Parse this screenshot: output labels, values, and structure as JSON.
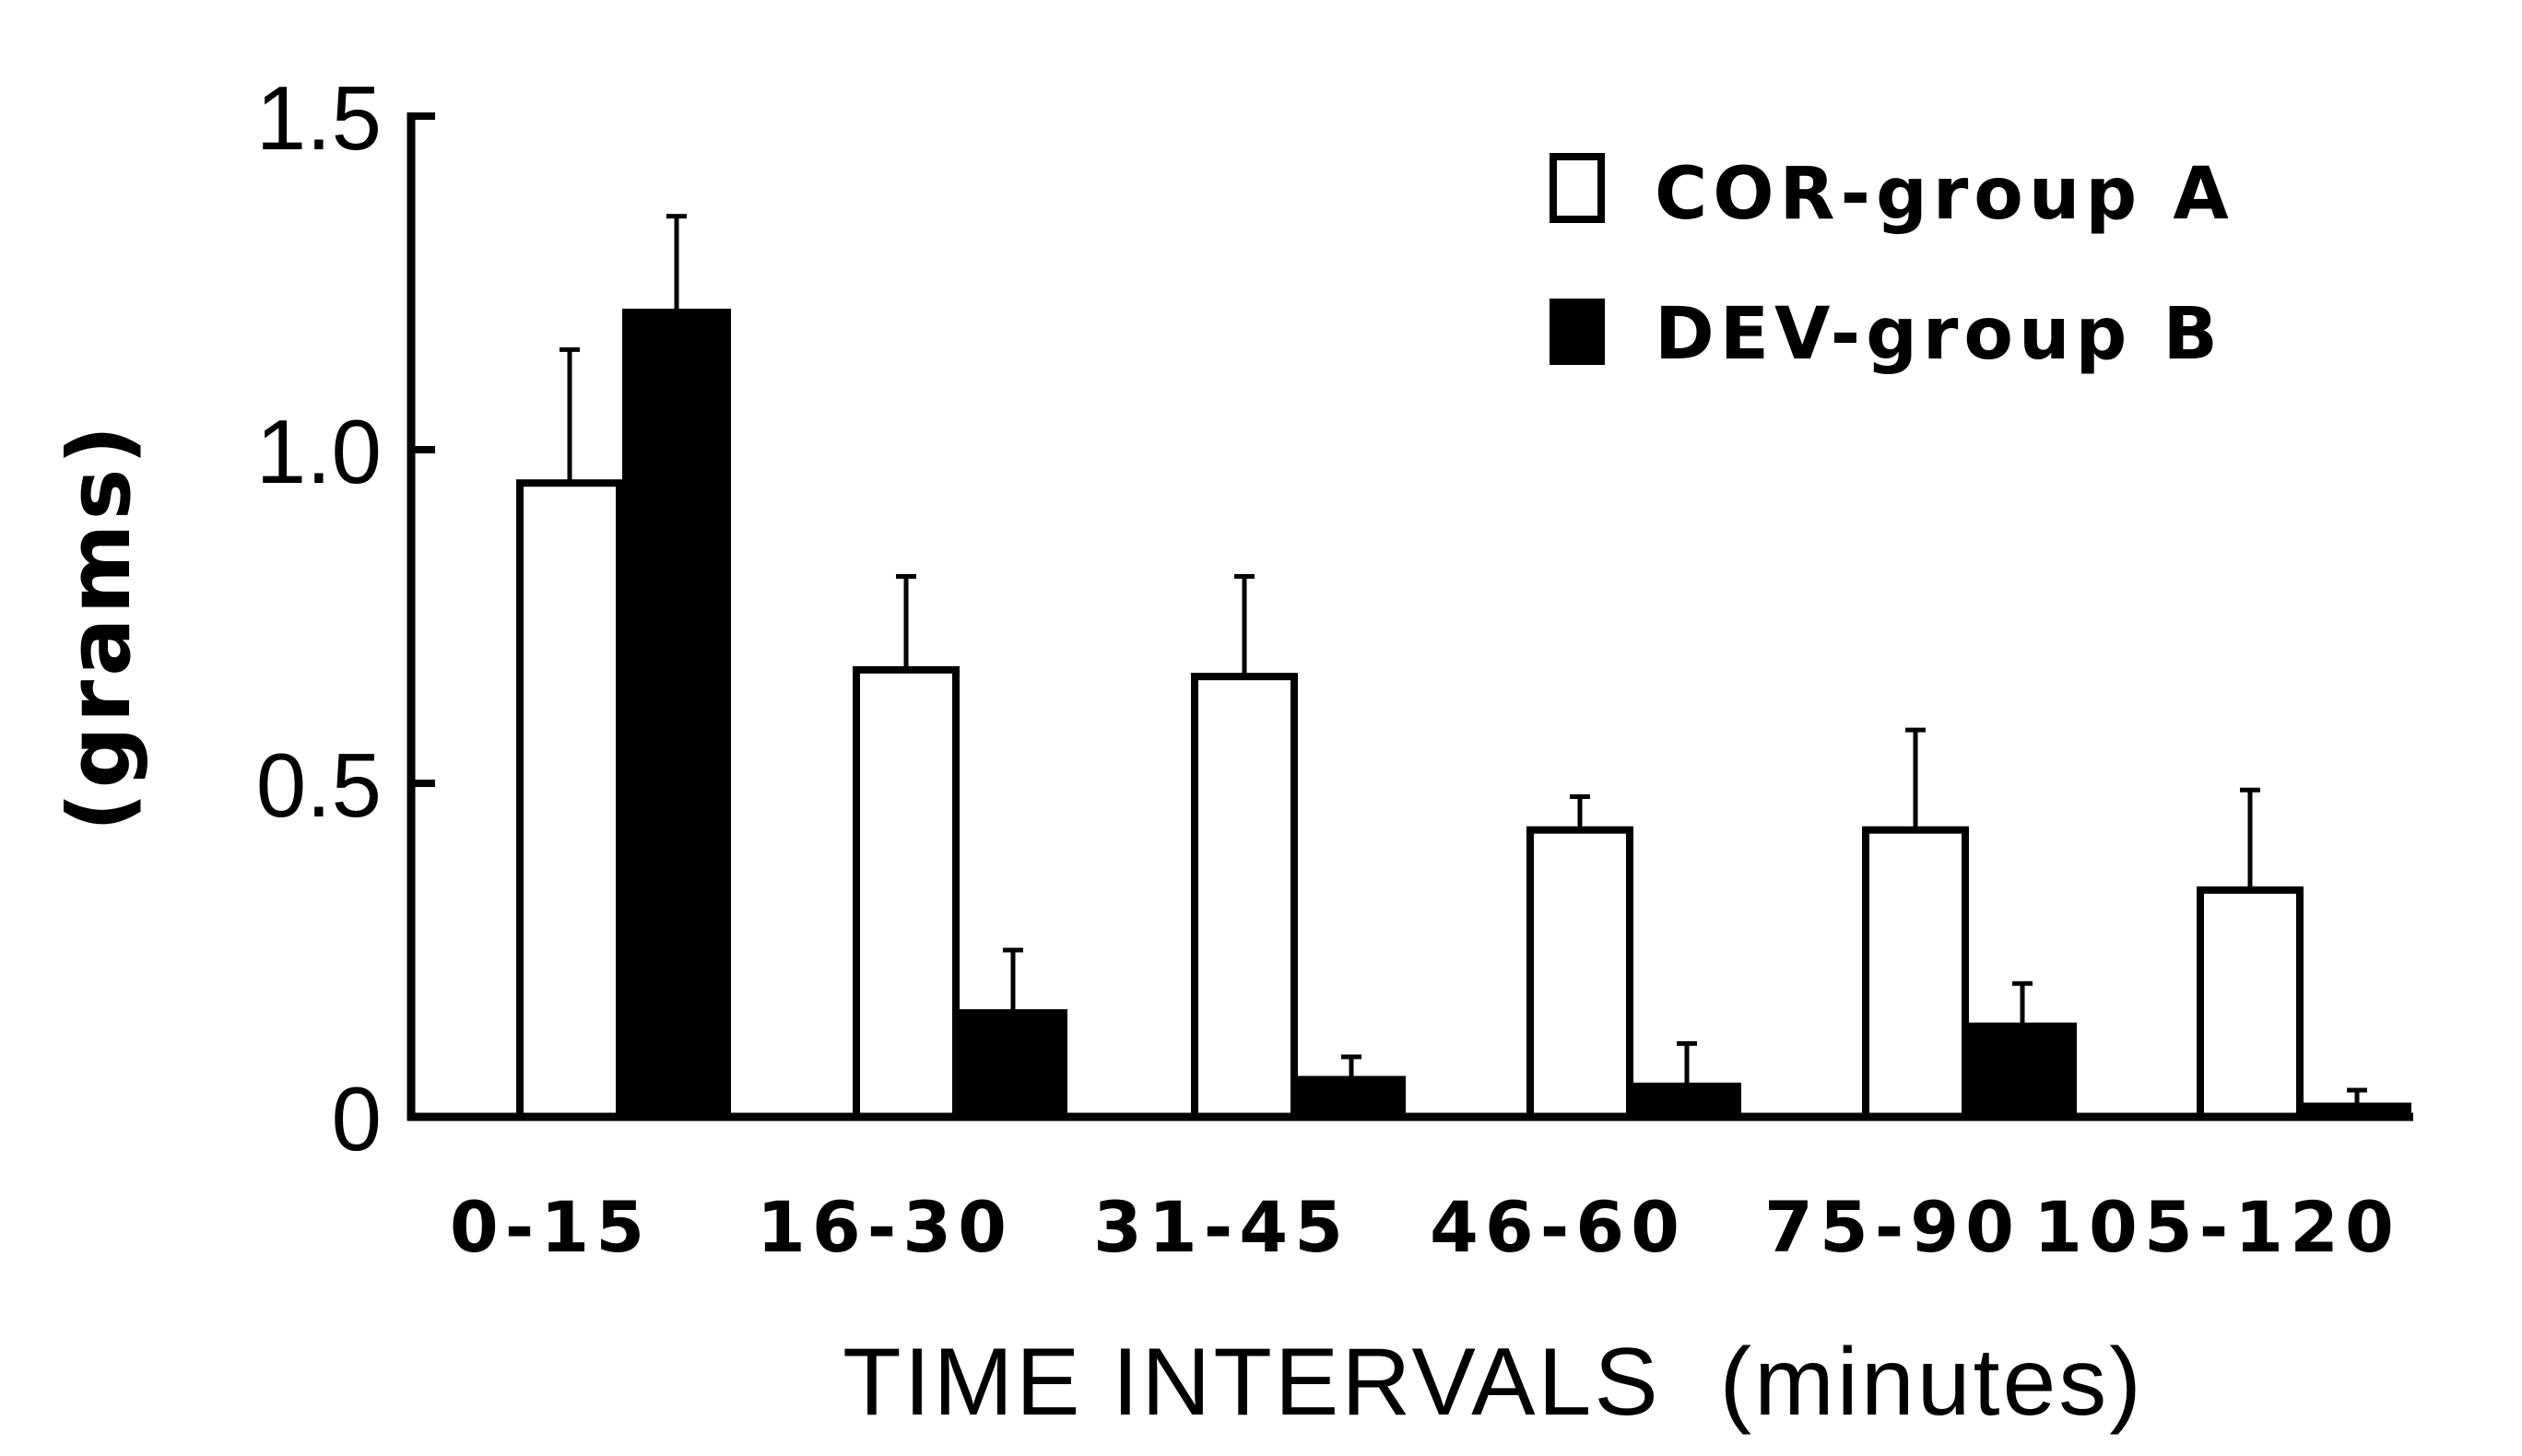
{
  "chart_data": {
    "type": "bar",
    "title": "",
    "xlabel": "TIME INTERVALS  (minutes)",
    "ylabel": "(grams)",
    "ylim": [
      0,
      1.5
    ],
    "yticks": [
      "0",
      "0.5",
      "1.0",
      "1.5"
    ],
    "ytick_values": [
      0,
      0.5,
      1.0,
      1.5
    ],
    "categories": [
      "0-15",
      "16-30",
      "31-45",
      "46-60",
      "75-90",
      "105-120"
    ],
    "series": [
      {
        "name": "COR-group A",
        "color": "#ffffff",
        "values": [
          0.95,
          0.67,
          0.66,
          0.43,
          0.43,
          0.34
        ],
        "error": [
          0.2,
          0.14,
          0.15,
          0.05,
          0.15,
          0.15
        ]
      },
      {
        "name": "DEV-group B",
        "color": "#000000",
        "values": [
          1.21,
          0.16,
          0.06,
          0.05,
          0.14,
          0.02
        ],
        "error": [
          0.14,
          0.09,
          0.03,
          0.06,
          0.06,
          0.02
        ]
      }
    ],
    "grid": false,
    "legend_position": "top-right",
    "error_bars": "upper"
  }
}
